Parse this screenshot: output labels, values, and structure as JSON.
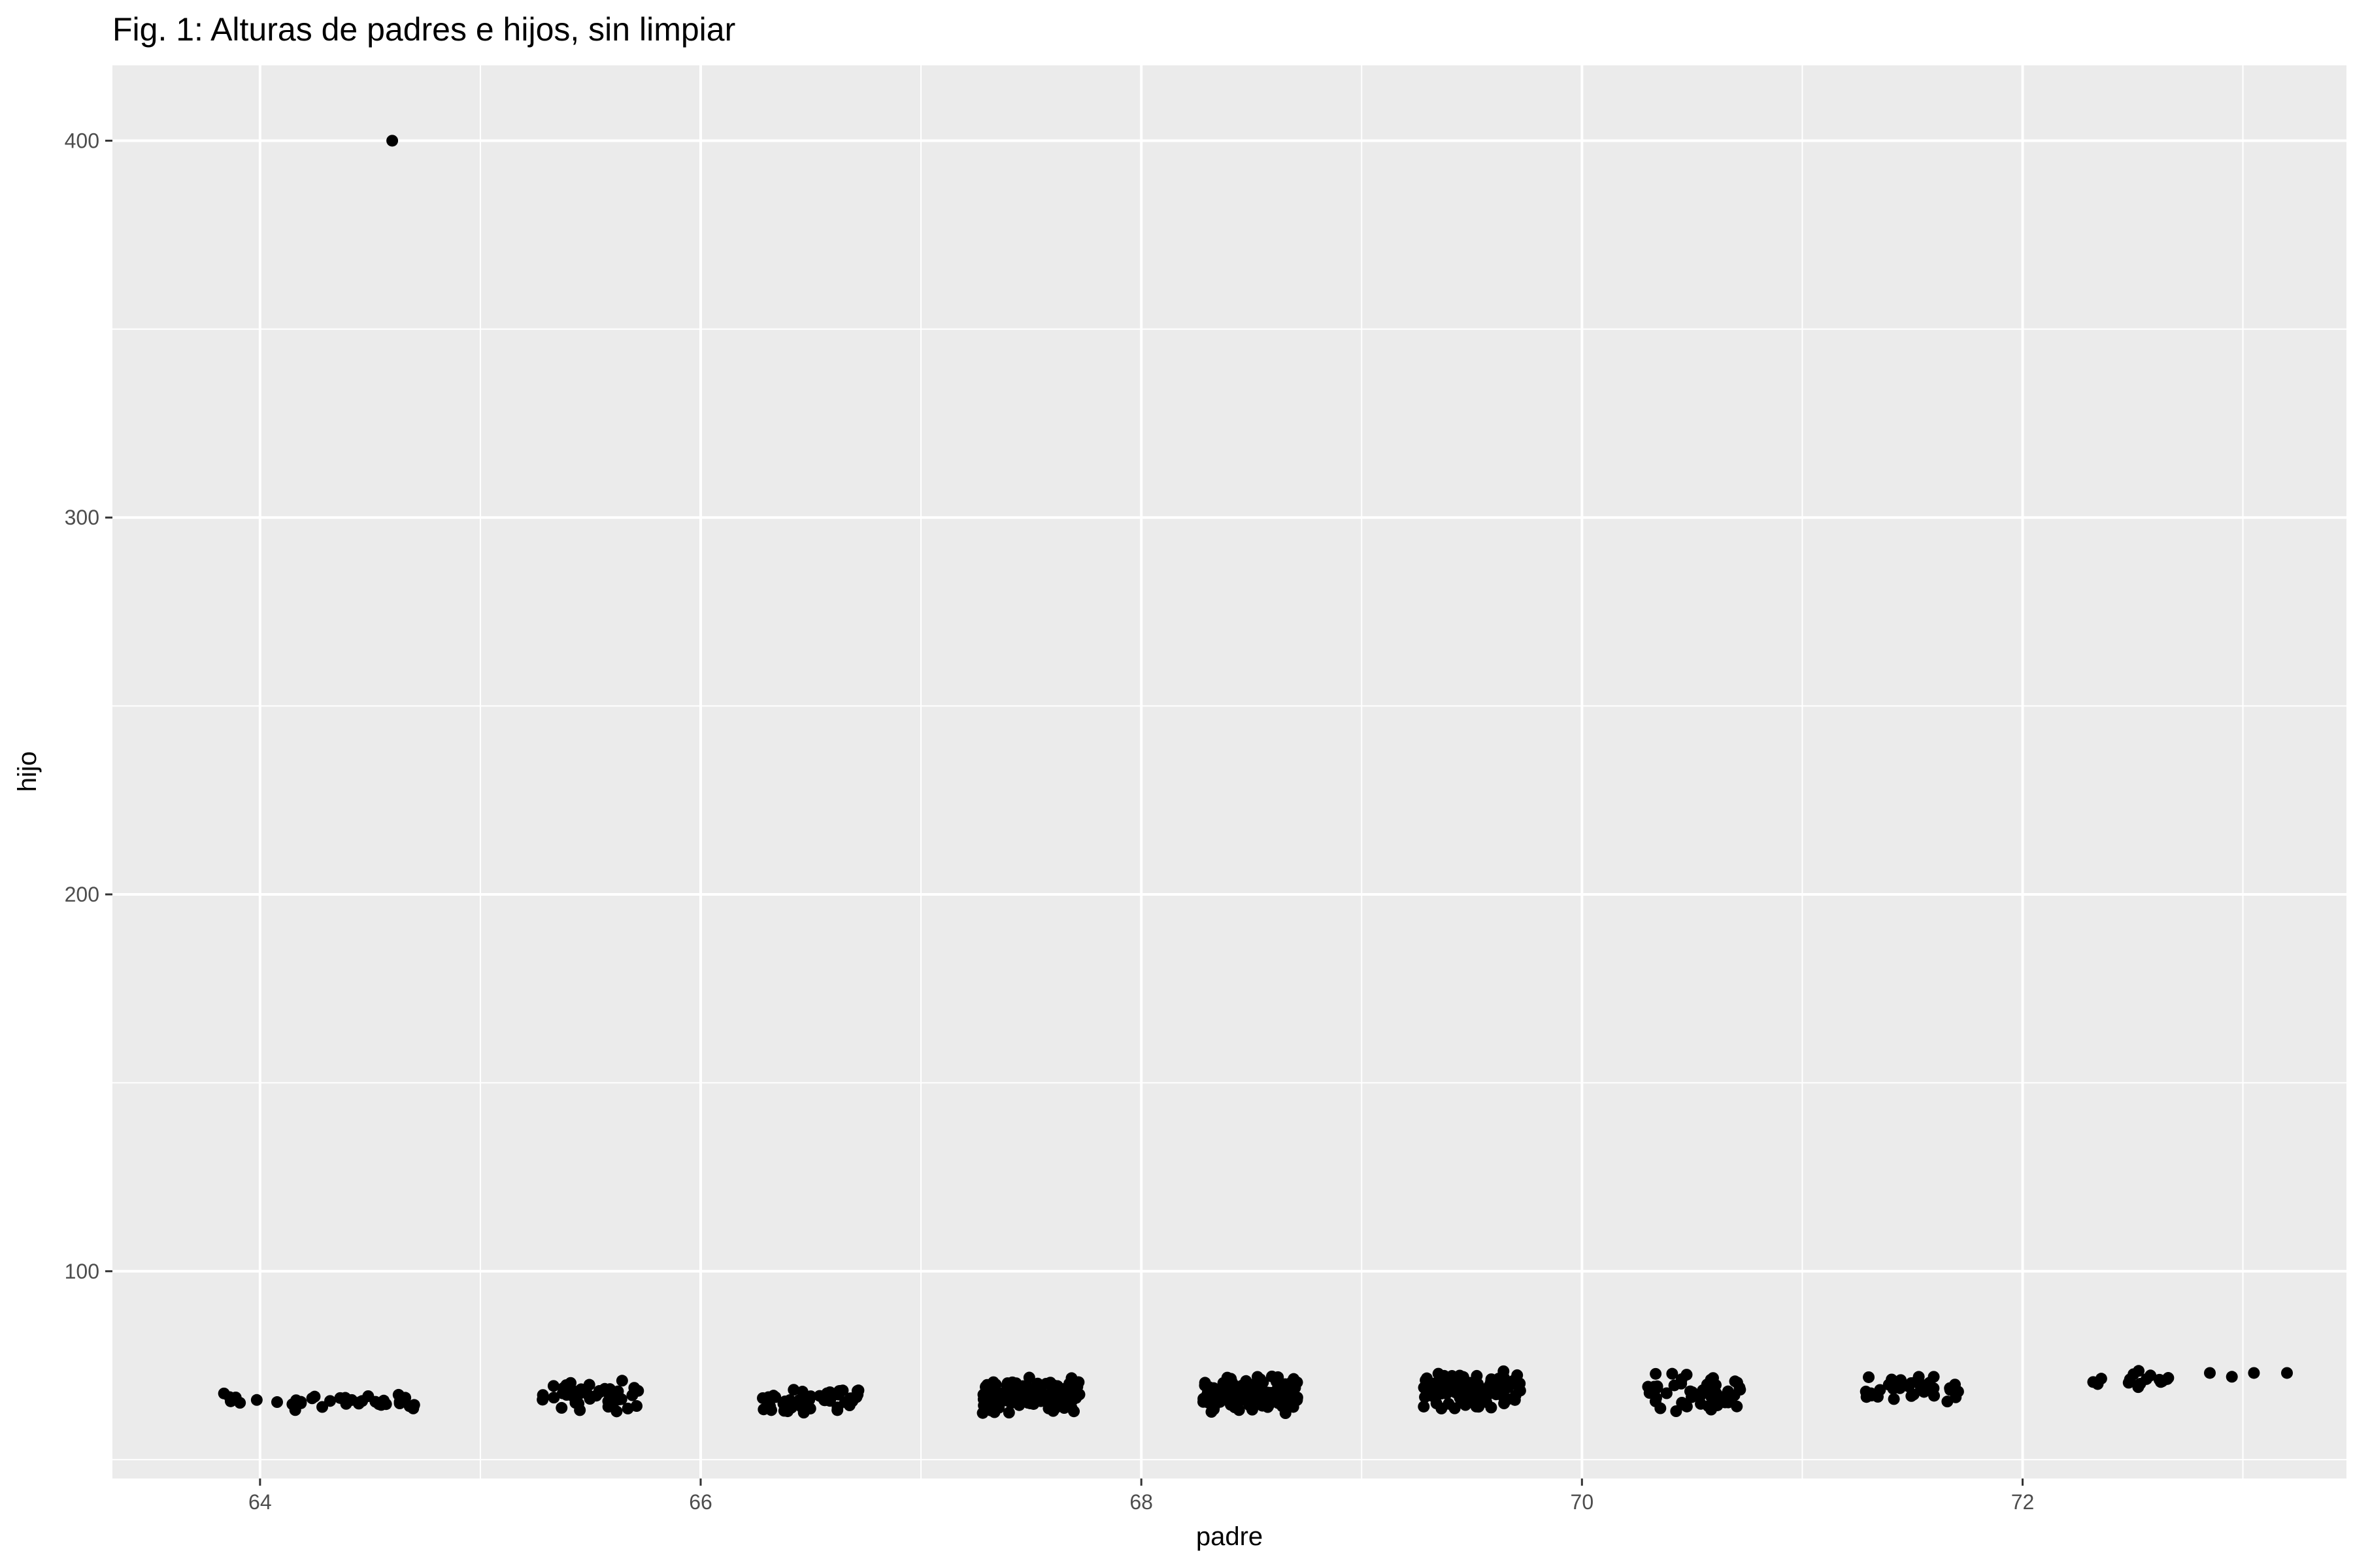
{
  "chart_data": {
    "type": "scatter",
    "title": "Fig. 1: Alturas de padres e hijos, sin limpiar",
    "xlabel": "padre",
    "ylabel": "hijo",
    "xlim": [
      63.33,
      73.47
    ],
    "ylim": [
      45,
      420
    ],
    "x_ticks": [
      64,
      66,
      68,
      70,
      72
    ],
    "y_ticks": [
      100,
      200,
      300,
      400
    ],
    "grid": true,
    "point_color": "#000000",
    "panel_background": "#ebebeb",
    "grid_color": "#ffffff",
    "clusters": [
      {
        "x_center": 64.0,
        "x_spread": 0.25,
        "y_min": 62,
        "y_max": 69,
        "count": 16
      },
      {
        "x_center": 64.5,
        "x_spread": 0.22,
        "y_min": 62,
        "y_max": 69,
        "count": 22
      },
      {
        "x_center": 65.5,
        "x_spread": 0.22,
        "y_min": 62,
        "y_max": 72,
        "count": 45
      },
      {
        "x_center": 66.5,
        "x_spread": 0.22,
        "y_min": 62,
        "y_max": 70,
        "count": 55
      },
      {
        "x_center": 67.5,
        "x_spread": 0.22,
        "y_min": 62,
        "y_max": 72,
        "count": 140
      },
      {
        "x_center": 68.5,
        "x_spread": 0.22,
        "y_min": 62,
        "y_max": 73,
        "count": 130
      },
      {
        "x_center": 69.5,
        "x_spread": 0.22,
        "y_min": 63,
        "y_max": 74,
        "count": 110
      },
      {
        "x_center": 70.5,
        "x_spread": 0.22,
        "y_min": 62,
        "y_max": 74,
        "count": 50
      },
      {
        "x_center": 71.5,
        "x_spread": 0.22,
        "y_min": 65,
        "y_max": 73,
        "count": 35
      },
      {
        "x_center": 72.5,
        "x_spread": 0.2,
        "y_min": 68,
        "y_max": 74,
        "count": 16
      }
    ],
    "points": [
      [
        64.6,
        400
      ],
      [
        72.85,
        73
      ],
      [
        72.95,
        72
      ],
      [
        73.05,
        73
      ],
      [
        73.2,
        73
      ]
    ]
  }
}
